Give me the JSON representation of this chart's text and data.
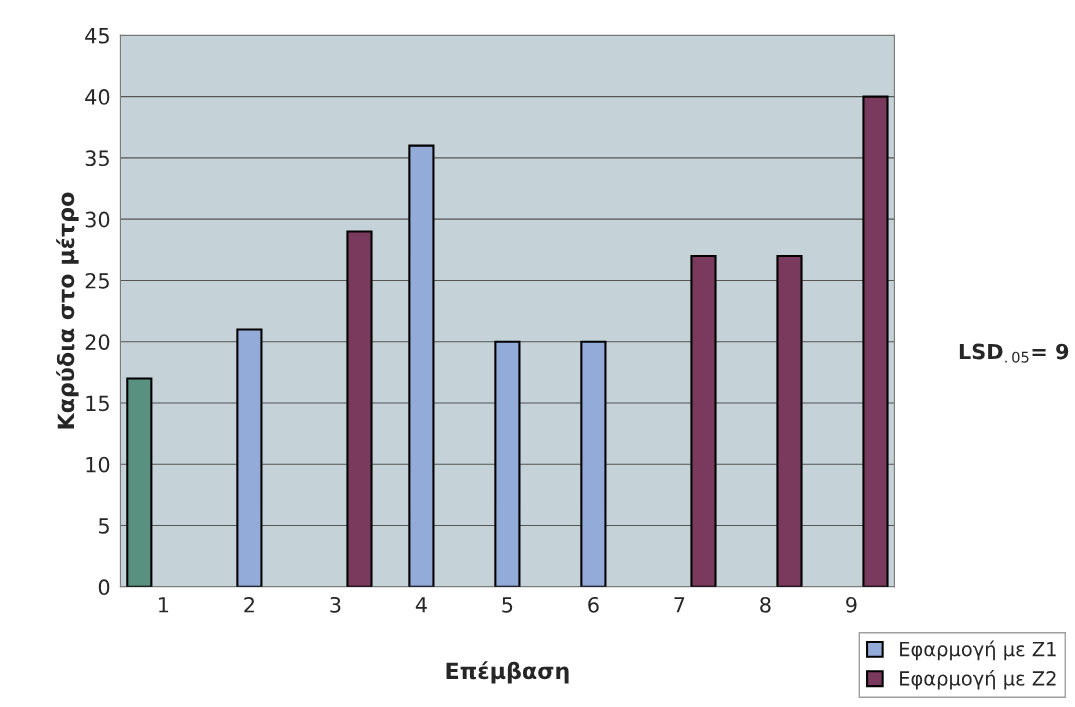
{
  "chart_data": {
    "type": "bar",
    "xlabel": "Επέμβαση",
    "ylabel": "Καρύδια στο μέτρο",
    "categories": [
      "1",
      "2",
      "3",
      "4",
      "5",
      "6",
      "7",
      "8",
      "9"
    ],
    "series": [
      {
        "color": "#5a9080",
        "values": [
          17,
          null,
          null,
          null,
          null,
          null,
          null,
          null,
          null
        ]
      },
      {
        "name": "Εφαρμογή με Z1",
        "color": "#93abd8",
        "values": [
          null,
          21,
          null,
          36,
          20,
          20,
          null,
          null,
          null
        ]
      },
      {
        "name": "Εφαρμογή με Z2",
        "color": "#7a3a5e",
        "values": [
          null,
          null,
          29,
          null,
          null,
          null,
          27,
          27,
          40
        ]
      }
    ],
    "ylim": [
      0,
      45
    ],
    "yticks": [
      0,
      5,
      10,
      15,
      20,
      25,
      30,
      35,
      40,
      45
    ],
    "grid": "y",
    "legend": "bottom right",
    "annotations": [
      "LSD$_{.05}$= 9"
    ]
  }
}
